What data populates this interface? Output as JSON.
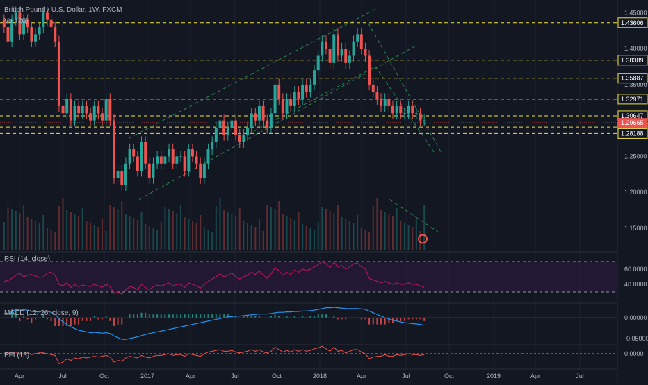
{
  "header": {
    "symbol_title": "British Pound / U.S. Dollar, 1W, FXCM",
    "volume_label": "Vol (20)"
  },
  "colors": {
    "background": "#131722",
    "up": "#26a69a",
    "down": "#ef5350",
    "level_line": "#f0e040",
    "channel": "#2e8b57",
    "rsi": "#c2185b",
    "macd": "#2196f3",
    "signal": "#ef5350",
    "efi": "#ef5350",
    "price_axis": "#b2b5be"
  },
  "chart_data": [
    {
      "type": "candlestick",
      "title": "British Pound / U.S. Dollar, 1W, FXCM",
      "ylim": [
        1.12,
        1.46
      ],
      "y_ticks": [
        1.15,
        1.2,
        1.25,
        1.3,
        1.35,
        1.4,
        1.45
      ],
      "x_ticks": [
        "Apr",
        "Jul",
        "Oct",
        "2017",
        "Apr",
        "Jul",
        "Oct",
        "2018",
        "Apr",
        "Jul",
        "Oct",
        "2019",
        "Apr",
        "Jul"
      ],
      "candles_close": [
        1.43,
        1.41,
        1.44,
        1.45,
        1.42,
        1.44,
        1.43,
        1.41,
        1.42,
        1.43,
        1.45,
        1.44,
        1.43,
        1.41,
        1.32,
        1.31,
        1.33,
        1.3,
        1.32,
        1.31,
        1.32,
        1.31,
        1.3,
        1.32,
        1.31,
        1.3,
        1.33,
        1.3,
        1.22,
        1.23,
        1.21,
        1.24,
        1.26,
        1.25,
        1.23,
        1.27,
        1.24,
        1.22,
        1.24,
        1.25,
        1.24,
        1.25,
        1.26,
        1.24,
        1.25,
        1.25,
        1.23,
        1.26,
        1.25,
        1.24,
        1.22,
        1.24,
        1.26,
        1.27,
        1.29,
        1.3,
        1.28,
        1.29,
        1.3,
        1.28,
        1.27,
        1.28,
        1.29,
        1.31,
        1.3,
        1.32,
        1.3,
        1.29,
        1.31,
        1.35,
        1.33,
        1.31,
        1.33,
        1.32,
        1.34,
        1.33,
        1.35,
        1.34,
        1.35,
        1.37,
        1.39,
        1.41,
        1.4,
        1.38,
        1.42,
        1.39,
        1.4,
        1.38,
        1.39,
        1.41,
        1.42,
        1.4,
        1.39,
        1.35,
        1.34,
        1.33,
        1.32,
        1.33,
        1.32,
        1.31,
        1.32,
        1.31,
        1.31,
        1.32,
        1.31,
        1.31,
        1.3,
        1.3
      ],
      "level_lines": [
        "1.43606",
        "1.38389",
        "1.35887",
        "1.32971",
        "1.30647",
        "1.29090",
        "1.28188"
      ],
      "last_price": "1.29665"
    },
    {
      "type": "line",
      "title": "RSI (14, close)",
      "ylim": [
        20,
        80
      ],
      "y_ticks": [
        "60.0000",
        "40.0000"
      ],
      "values": [
        44,
        45,
        48,
        52,
        55,
        50,
        52,
        53,
        51,
        49,
        50,
        55,
        56,
        52,
        40,
        38,
        42,
        36,
        40,
        37,
        39,
        38,
        37,
        40,
        38,
        36,
        40,
        37,
        28,
        30,
        27,
        33,
        37,
        36,
        33,
        40,
        36,
        33,
        37,
        39,
        38,
        40,
        42,
        38,
        40,
        40,
        36,
        42,
        40,
        38,
        35,
        40,
        44,
        47,
        50,
        54,
        50,
        52,
        55,
        50,
        47,
        50,
        52,
        56,
        53,
        58,
        52,
        48,
        54,
        62,
        58,
        52,
        56,
        53,
        59,
        56,
        60,
        58,
        60,
        63,
        66,
        70,
        67,
        62,
        69,
        63,
        65,
        60,
        63,
        67,
        68,
        63,
        60,
        48,
        46,
        44,
        42,
        44,
        42,
        40,
        42,
        40,
        40,
        42,
        40,
        40,
        38,
        36
      ]
    },
    {
      "type": "line",
      "title": "MACD (12, 26, close, 9)",
      "y_ticks": [
        "0.00000",
        "-0.05000"
      ],
      "series": [
        {
          "values": [
            0.01,
            0.01,
            0.015,
            0.02,
            0.018,
            0.019,
            0.018,
            0.015,
            0.014,
            0.014,
            0.016,
            0.015,
            0.013,
            0.008,
            -0.002,
            -0.01,
            -0.016,
            -0.022,
            -0.026,
            -0.03,
            -0.032,
            -0.034,
            -0.036,
            -0.035,
            -0.036,
            -0.037,
            -0.036,
            -0.038,
            -0.044,
            -0.048,
            -0.052,
            -0.052,
            -0.05,
            -0.048,
            -0.046,
            -0.043,
            -0.04,
            -0.038,
            -0.036,
            -0.034,
            -0.032,
            -0.03,
            -0.028,
            -0.026,
            -0.024,
            -0.022,
            -0.02,
            -0.018,
            -0.016,
            -0.014,
            -0.012,
            -0.01,
            -0.008,
            -0.006,
            -0.004,
            -0.002,
            0.0,
            0.002,
            0.003,
            0.004,
            0.004,
            0.005,
            0.006,
            0.007,
            0.008,
            0.009,
            0.009,
            0.009,
            0.01,
            0.012,
            0.013,
            0.013,
            0.014,
            0.014,
            0.015,
            0.015,
            0.016,
            0.016,
            0.017,
            0.018,
            0.02,
            0.022,
            0.024,
            0.024,
            0.025,
            0.024,
            0.023,
            0.022,
            0.022,
            0.022,
            0.022,
            0.021,
            0.02,
            0.016,
            0.012,
            0.008,
            0.004,
            0.0,
            -0.003,
            -0.006,
            -0.008,
            -0.01,
            -0.012,
            -0.013,
            -0.014,
            -0.015,
            -0.016,
            -0.018
          ]
        }
      ]
    },
    {
      "type": "line",
      "title": "EFI (13)",
      "y_ticks": [
        "0.0000"
      ],
      "values": [
        0.0,
        0.1,
        0.0,
        0.2,
        -0.1,
        0.0,
        0.1,
        -0.1,
        0.0,
        0.1,
        0.1,
        0.0,
        -0.1,
        -0.2,
        -1.2,
        -1.0,
        -0.6,
        -0.8,
        -0.5,
        -0.6,
        -0.4,
        -0.5,
        -0.4,
        -0.3,
        -0.4,
        -0.3,
        -0.2,
        -0.4,
        -1.0,
        -0.8,
        -0.9,
        -0.5,
        -0.3,
        -0.4,
        -0.5,
        -0.2,
        -0.4,
        -0.5,
        -0.3,
        -0.2,
        -0.2,
        -0.1,
        0.0,
        -0.2,
        -0.1,
        -0.1,
        -0.3,
        0.0,
        -0.1,
        -0.2,
        -0.3,
        0.0,
        0.2,
        0.3,
        0.4,
        0.5,
        0.3,
        0.3,
        0.4,
        0.2,
        0.1,
        0.2,
        0.3,
        0.5,
        0.3,
        0.5,
        0.2,
        0.1,
        0.3,
        0.8,
        0.5,
        0.2,
        0.4,
        0.2,
        0.5,
        0.3,
        0.5,
        0.3,
        0.4,
        0.6,
        0.7,
        0.9,
        0.6,
        0.3,
        0.8,
        0.3,
        0.4,
        0.1,
        0.3,
        0.5,
        0.5,
        0.2,
        0.0,
        -0.6,
        -0.4,
        -0.3,
        -0.3,
        -0.1,
        -0.3,
        -0.3,
        -0.1,
        -0.2,
        -0.1,
        0.0,
        -0.1,
        -0.1,
        -0.2,
        -0.1
      ]
    }
  ]
}
